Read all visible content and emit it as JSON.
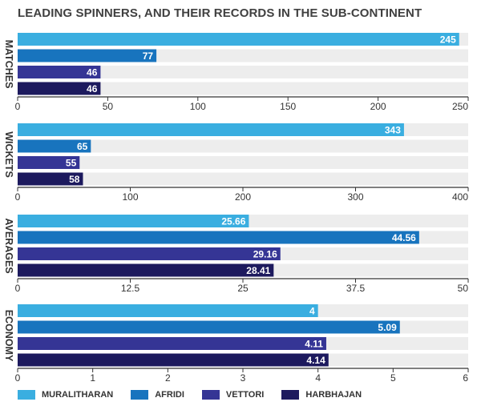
{
  "title": "LEADING SPINNERS, AND THEIR RECORDS IN THE SUB-CONTINENT",
  "chart_data": {
    "type": "bar",
    "orientation": "horizontal",
    "title": "LEADING SPINNERS, AND THEIR RECORDS IN THE SUB-CONTINENT",
    "legend_position": "bottom",
    "grid": false,
    "series_names": [
      "MURALITHARAN",
      "AFRIDI",
      "VETTORI",
      "HARBHAJAN"
    ],
    "colors": [
      "#3aaee0",
      "#1874be",
      "#353595",
      "#1d1a5e"
    ],
    "panels": [
      {
        "label": "MATCHES",
        "xlim": [
          0,
          250
        ],
        "ticks": [
          "0",
          "50",
          "100",
          "150",
          "200",
          "250"
        ],
        "values": [
          245,
          77,
          46,
          46
        ],
        "value_labels": [
          "245",
          "77",
          "46",
          "46"
        ]
      },
      {
        "label": "WICKETS",
        "xlim": [
          0,
          400
        ],
        "ticks": [
          "0",
          "100",
          "200",
          "300",
          "400"
        ],
        "values": [
          343,
          65,
          55,
          58
        ],
        "value_labels": [
          "343",
          "65",
          "55",
          "58"
        ]
      },
      {
        "label": "AVERAGES",
        "xlim": [
          0,
          50
        ],
        "ticks": [
          "0",
          "12.5",
          "25",
          "37.5",
          "50"
        ],
        "values": [
          25.66,
          44.56,
          29.16,
          28.41
        ],
        "value_labels": [
          "25.66",
          "44.56",
          "29.16",
          "28.41"
        ]
      },
      {
        "label": "ECONOMY",
        "xlim": [
          0,
          6
        ],
        "ticks": [
          "0",
          "1",
          "2",
          "3",
          "4",
          "5",
          "6"
        ],
        "values": [
          4,
          5.09,
          4.11,
          4.14
        ],
        "value_labels": [
          "4",
          "5.09",
          "4.11",
          "4.14"
        ]
      }
    ]
  }
}
